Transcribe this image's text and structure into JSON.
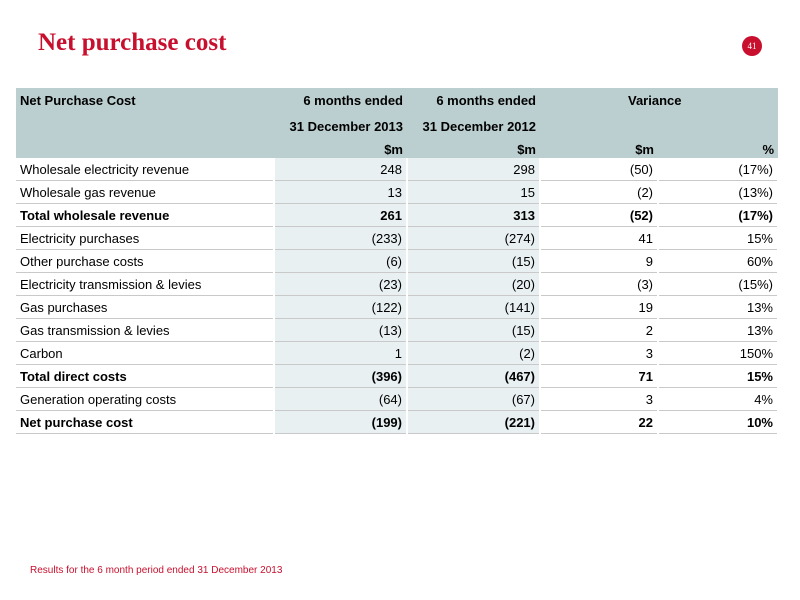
{
  "slide": {
    "title": "Net purchase cost",
    "page_number": "41",
    "footnote": "Results for the 6 month period ended 31 December 2013"
  },
  "table": {
    "header": {
      "label": "Net Purchase Cost",
      "col1_line1": "6 months ended",
      "col1_line2": "31 December 2013",
      "col2_line1": "6 months ended",
      "col2_line2": "31 December 2012",
      "variance": "Variance",
      "unit1": "$m",
      "unit2": "$m",
      "unit3": "$m",
      "unit4": "%"
    },
    "rows": [
      {
        "label": "Wholesale electricity revenue",
        "v2013": "248",
        "v2012": "298",
        "var_m": "(50)",
        "var_pct": "(17%)",
        "bold": false
      },
      {
        "label": "Wholesale gas revenue",
        "v2013": "13",
        "v2012": "15",
        "var_m": "(2)",
        "var_pct": "(13%)",
        "bold": false
      },
      {
        "label": "Total wholesale revenue",
        "v2013": "261",
        "v2012": "313",
        "var_m": "(52)",
        "var_pct": "(17%)",
        "bold": true
      },
      {
        "label": "Electricity purchases",
        "v2013": "(233)",
        "v2012": "(274)",
        "var_m": "41",
        "var_pct": "15%",
        "bold": false
      },
      {
        "label": "Other purchase costs",
        "v2013": "(6)",
        "v2012": "(15)",
        "var_m": "9",
        "var_pct": "60%",
        "bold": false
      },
      {
        "label": "Electricity transmission & levies",
        "v2013": "(23)",
        "v2012": "(20)",
        "var_m": "(3)",
        "var_pct": "(15%)",
        "bold": false
      },
      {
        "label": "Gas purchases",
        "v2013": "(122)",
        "v2012": "(141)",
        "var_m": "19",
        "var_pct": "13%",
        "bold": false
      },
      {
        "label": "Gas transmission & levies",
        "v2013": "(13)",
        "v2012": "(15)",
        "var_m": "2",
        "var_pct": "13%",
        "bold": false
      },
      {
        "label": "Carbon",
        "v2013": "1",
        "v2012": "(2)",
        "var_m": "3",
        "var_pct": "150%",
        "bold": false
      },
      {
        "label": "Total direct costs",
        "v2013": "(396)",
        "v2012": "(467)",
        "var_m": "71",
        "var_pct": "15%",
        "bold": true
      },
      {
        "label": "Generation operating costs",
        "v2013": "(64)",
        "v2012": "(67)",
        "var_m": "3",
        "var_pct": "4%",
        "bold": false
      },
      {
        "label": "Net purchase cost",
        "v2013": "(199)",
        "v2012": "(221)",
        "var_m": "22",
        "var_pct": "10%",
        "bold": true
      }
    ]
  },
  "colors": {
    "accent": "#c8102e",
    "header_bg": "#bccfd0",
    "cell_shade": "#e8f0f2"
  }
}
